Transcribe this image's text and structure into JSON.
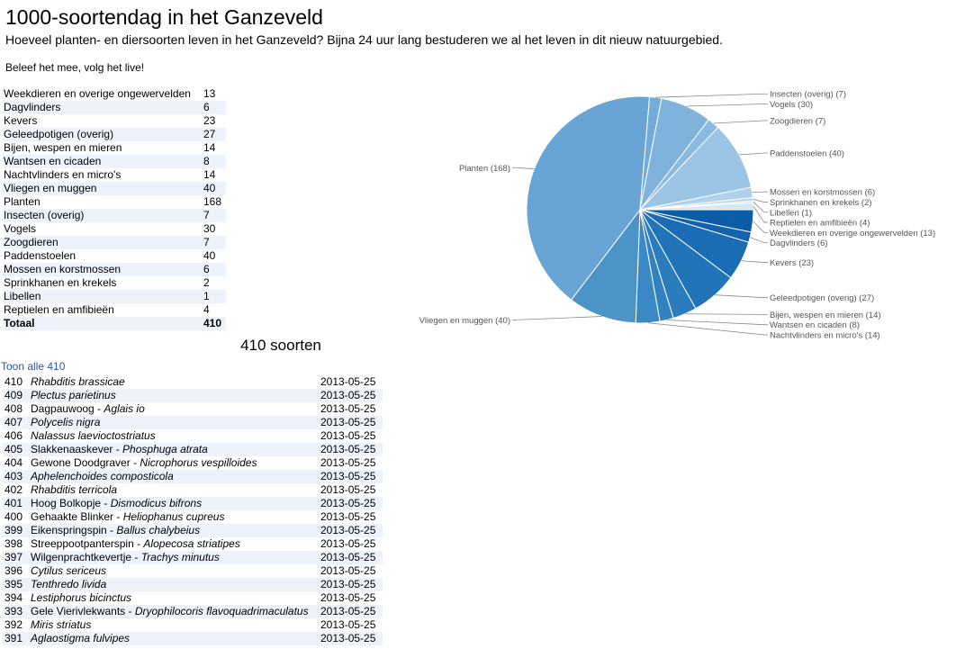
{
  "page": {
    "title": "1000-soortendag in het Ganzeveld",
    "subtitle": "Hoeveel planten- en diersoorten leven in het Ganzeveld? Bijna 24 uur lang bestuderen we al het leven in dit nieuw natuurgebied.",
    "tagline": "Beleef het mee, volg het live!"
  },
  "summary": {
    "rows": [
      {
        "name": "Weekdieren en overige ongewervelden",
        "count": "13"
      },
      {
        "name": "Dagvlinders",
        "count": "6"
      },
      {
        "name": "Kevers",
        "count": "23"
      },
      {
        "name": "Geleedpotigen (overig)",
        "count": "27"
      },
      {
        "name": "Bijen, wespen en mieren",
        "count": "14"
      },
      {
        "name": "Wantsen en cicaden",
        "count": "8"
      },
      {
        "name": "Nachtvlinders en micro's",
        "count": "14"
      },
      {
        "name": "Vliegen en muggen",
        "count": "40"
      },
      {
        "name": "Planten",
        "count": "168"
      },
      {
        "name": "Insecten (overig)",
        "count": "7"
      },
      {
        "name": "Vogels",
        "count": "30"
      },
      {
        "name": "Zoogdieren",
        "count": "7"
      },
      {
        "name": "Paddenstoelen",
        "count": "40"
      },
      {
        "name": "Mossen en korstmossen",
        "count": "6"
      },
      {
        "name": "Sprinkhanen en krekels",
        "count": "2"
      },
      {
        "name": "Libellen",
        "count": "1"
      },
      {
        "name": "Reptielen en amfibieën",
        "count": "4"
      }
    ],
    "total_label": "Totaal",
    "total_value": "410"
  },
  "chart_data": {
    "type": "pie",
    "slices": [
      {
        "label": "Weekdieren en overige ongewervelden (13)",
        "value": 13,
        "color": "#0b5da8"
      },
      {
        "label": "Dagvlinders (6)",
        "value": 6,
        "color": "#1462ad"
      },
      {
        "label": "Kevers (23)",
        "value": 23,
        "color": "#1a6cb4"
      },
      {
        "label": "Geleedpotigen (overig) (27)",
        "value": 27,
        "color": "#2174b8"
      },
      {
        "label": "Bijen, wespen en mieren (14)",
        "value": 14,
        "color": "#2a7cbc"
      },
      {
        "label": "Wantsen en cicaden (8)",
        "value": 8,
        "color": "#3282c0"
      },
      {
        "label": "Nachtvlinders en micro's (14)",
        "value": 14,
        "color": "#3a88c4"
      },
      {
        "label": "Vliegen en muggen (40)",
        "value": 40,
        "color": "#4c93c8"
      },
      {
        "label": "Planten (168)",
        "value": 168,
        "color": "#69a5d4"
      },
      {
        "label": "Insecten (overig) (7)",
        "value": 7,
        "color": "#74acd8"
      },
      {
        "label": "Vogels (30)",
        "value": 30,
        "color": "#7fb3db"
      },
      {
        "label": "Zoogdieren (7)",
        "value": 7,
        "color": "#8abadf"
      },
      {
        "label": "Paddenstoelen (40)",
        "value": 40,
        "color": "#9cc5e5"
      },
      {
        "label": "Mossen en korstmossen (6)",
        "value": 6,
        "color": "#afd1ec"
      },
      {
        "label": "Sprinkhanen en krekels (2)",
        "value": 2,
        "color": "#bcd8ef"
      },
      {
        "label": "Libellen (1)",
        "value": 1,
        "color": "#c8e0f2"
      },
      {
        "label": "Reptielen en amfibieën (4)",
        "value": 4,
        "color": "#d4e7f5"
      }
    ]
  },
  "species_section": {
    "title": "410 soorten",
    "show_all_link": "Toon alle 410",
    "rows": [
      {
        "num": "410",
        "common": "",
        "latin": "Rhabditis brassicae",
        "date": "2013-05-25"
      },
      {
        "num": "409",
        "common": "",
        "latin": "Plectus parietinus",
        "date": "2013-05-25"
      },
      {
        "num": "408",
        "common": "Dagpauwoog - ",
        "latin": "Aglais io",
        "date": "2013-05-25"
      },
      {
        "num": "407",
        "common": "",
        "latin": "Polycelis nigra",
        "date": "2013-05-25"
      },
      {
        "num": "406",
        "common": "",
        "latin": "Nalassus laevioctostriatus",
        "date": "2013-05-25"
      },
      {
        "num": "405",
        "common": "Slakkenaaskever - ",
        "latin": "Phosphuga atrata",
        "date": "2013-05-25"
      },
      {
        "num": "404",
        "common": "Gewone Doodgraver - ",
        "latin": "Nicrophorus vespilloides",
        "date": "2013-05-25"
      },
      {
        "num": "403",
        "common": "",
        "latin": "Aphelenchoides composticola",
        "date": "2013-05-25"
      },
      {
        "num": "402",
        "common": "",
        "latin": "Rhabditis terricola",
        "date": "2013-05-25"
      },
      {
        "num": "401",
        "common": "Hoog Bolkopje - ",
        "latin": "Dismodicus bifrons",
        "date": "2013-05-25"
      },
      {
        "num": "400",
        "common": "Gehaakte Blinker - ",
        "latin": "Heliophanus cupreus",
        "date": "2013-05-25"
      },
      {
        "num": "399",
        "common": "Eikenspringspin - ",
        "latin": "Ballus chalybeius",
        "date": "2013-05-25"
      },
      {
        "num": "398",
        "common": "Streeppootpanterspin - ",
        "latin": "Alopecosa striatipes",
        "date": "2013-05-25"
      },
      {
        "num": "397",
        "common": "Wilgenprachtkevertje - ",
        "latin": "Trachys minutus",
        "date": "2013-05-25"
      },
      {
        "num": "396",
        "common": "",
        "latin": "Cytilus sericeus",
        "date": "2013-05-25"
      },
      {
        "num": "395",
        "common": "",
        "latin": "Tenthredo livida",
        "date": "2013-05-25"
      },
      {
        "num": "394",
        "common": "",
        "latin": "Lestiphorus bicinctus",
        "date": "2013-05-25"
      },
      {
        "num": "393",
        "common": "Gele Vierivlekwants - ",
        "latin": "Dryophilocoris flavoquadrimaculatus",
        "date": "2013-05-25"
      },
      {
        "num": "392",
        "common": "",
        "latin": "Miris striatus",
        "date": "2013-05-25"
      },
      {
        "num": "391",
        "common": "",
        "latin": "Aglaostigma fulvipes",
        "date": "2013-05-25"
      }
    ]
  }
}
